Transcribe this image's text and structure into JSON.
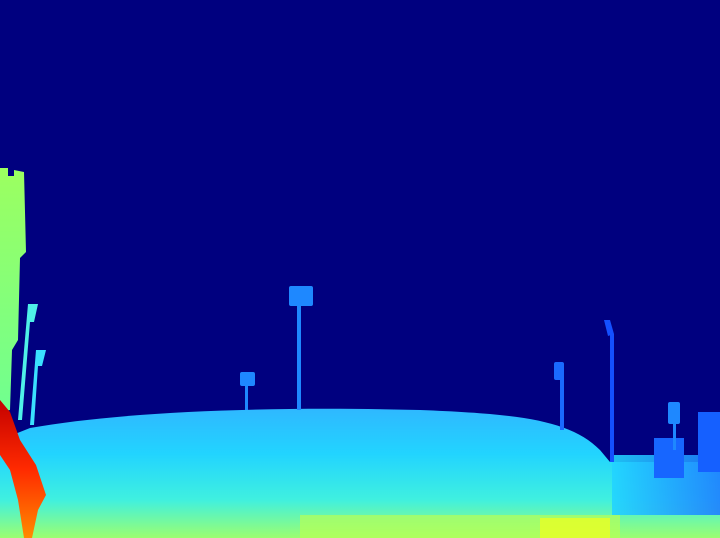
{
  "image": {
    "kind": "depth-map",
    "colormap": "jet",
    "description_colors": {
      "far": "#00007f",
      "mid_far": "#0a5cff",
      "mid": "#1ad0ff",
      "mid_near": "#6dffb0",
      "near": "#e8ff24",
      "nearest": "#c40000"
    }
  }
}
